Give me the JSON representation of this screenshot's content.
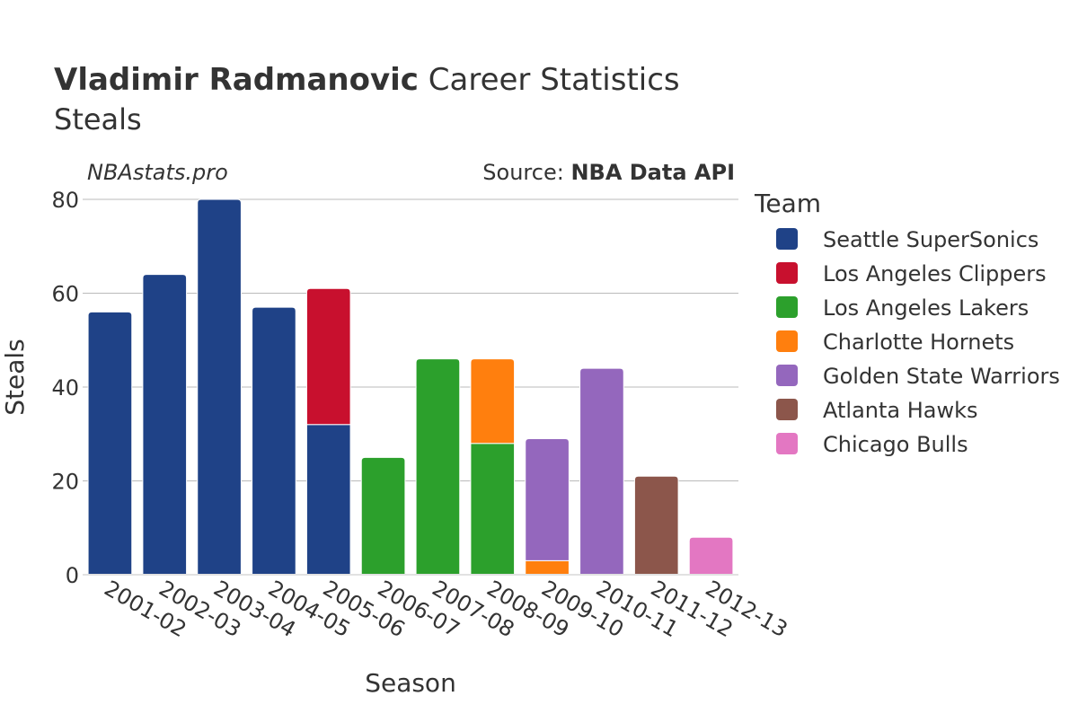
{
  "header": {
    "title_bold": "Vladimir Radmanovic",
    "title_rest": " Career Statistics",
    "subtitle": "Steals",
    "watermark": "NBAstats.pro",
    "source_prefix": "Source: ",
    "source_name": "NBA Data API"
  },
  "legend": {
    "title": "Team"
  },
  "colors": {
    "Seattle SuperSonics": "#1f4287",
    "Los Angeles Clippers": "#c8102e",
    "Los Angeles Lakers": "#2ca02c",
    "Charlotte Hornets": "#ff7f0e",
    "Golden State Warriors": "#9467bd",
    "Atlanta Hawks": "#8c564b",
    "Chicago Bulls": "#e377c2",
    "grid": "#bbbbbb",
    "text": "#333333"
  },
  "chart_data": {
    "type": "bar",
    "stacked": true,
    "title": "Vladimir Radmanovic Career Statistics",
    "subtitle": "Steals",
    "xlabel": "Season",
    "ylabel": "Steals",
    "ylim": [
      0,
      80
    ],
    "yticks": [
      0,
      20,
      40,
      60,
      80
    ],
    "grid": true,
    "legend_position": "right",
    "categories": [
      "2001-02",
      "2002-03",
      "2003-04",
      "2004-05",
      "2005-06",
      "2006-07",
      "2007-08",
      "2008-09",
      "2009-10",
      "2010-11",
      "2011-12",
      "2012-13"
    ],
    "series": [
      {
        "name": "Seattle SuperSonics",
        "values": [
          56,
          64,
          80,
          57,
          32,
          0,
          0,
          0,
          0,
          0,
          0,
          0
        ]
      },
      {
        "name": "Los Angeles Clippers",
        "values": [
          0,
          0,
          0,
          0,
          29,
          0,
          0,
          0,
          0,
          0,
          0,
          0
        ]
      },
      {
        "name": "Los Angeles Lakers",
        "values": [
          0,
          0,
          0,
          0,
          0,
          25,
          46,
          28,
          0,
          0,
          0,
          0
        ]
      },
      {
        "name": "Charlotte Hornets",
        "values": [
          0,
          0,
          0,
          0,
          0,
          0,
          0,
          18,
          3,
          0,
          0,
          0
        ]
      },
      {
        "name": "Golden State Warriors",
        "values": [
          0,
          0,
          0,
          0,
          0,
          0,
          0,
          0,
          26,
          44,
          0,
          0
        ]
      },
      {
        "name": "Atlanta Hawks",
        "values": [
          0,
          0,
          0,
          0,
          0,
          0,
          0,
          0,
          0,
          0,
          21,
          0
        ]
      },
      {
        "name": "Chicago Bulls",
        "values": [
          0,
          0,
          0,
          0,
          0,
          0,
          0,
          0,
          0,
          0,
          0,
          8
        ]
      }
    ]
  }
}
